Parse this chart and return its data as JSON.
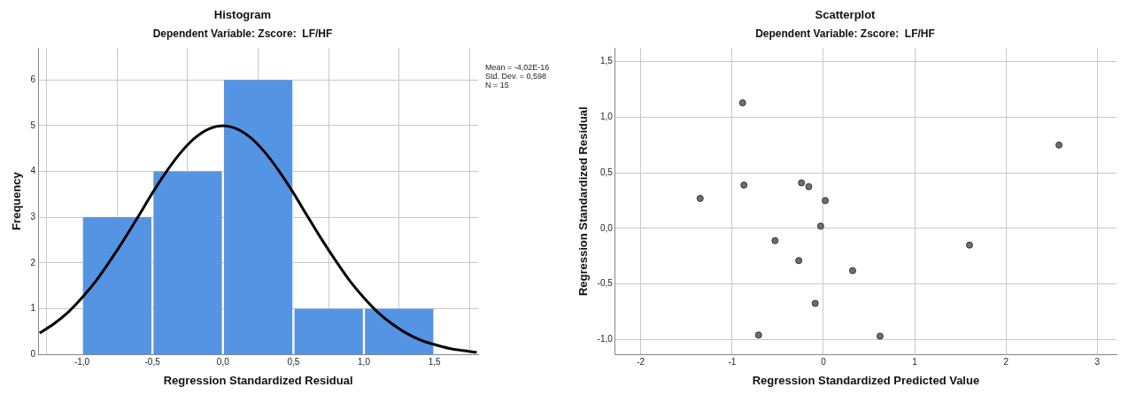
{
  "chart_data": [
    {
      "type": "histogram",
      "title": "Histogram",
      "subtitle": "Dependent Variable: Zscore:  LF/HF",
      "xlabel": "Regression Standardized Residual",
      "ylabel": "Frequency",
      "bins": [
        -1,
        -0.5,
        0,
        0.5,
        1,
        1.5
      ],
      "values": [
        3,
        4,
        6,
        1,
        1
      ],
      "color": "#5594e3",
      "series": [
        {
          "type": "line",
          "color": "#000000",
          "x": [
            -1.3,
            -1.2,
            -1.1,
            -1.0,
            -0.9,
            -0.8,
            -0.7,
            -0.6,
            -0.5,
            -0.4,
            -0.3,
            -0.2,
            -0.1,
            0,
            0.1,
            0.2,
            0.3,
            0.4,
            0.5,
            0.6,
            0.7,
            0.8,
            0.9,
            1.0,
            1.1,
            1.2,
            1.3,
            1.4,
            1.5,
            1.6,
            1.7,
            1.8
          ],
          "values": [
            0.47,
            0.67,
            0.92,
            1.24,
            1.61,
            2.05,
            2.52,
            3.02,
            3.53,
            4.0,
            4.41,
            4.73,
            4.93,
            5.0,
            4.93,
            4.73,
            4.41,
            4.0,
            3.53,
            3.02,
            2.52,
            2.05,
            1.61,
            1.24,
            0.92,
            0.67,
            0.47,
            0.32,
            0.22,
            0.14,
            0.09,
            0.05
          ]
        }
      ],
      "xlim": [
        -1.31,
        1.81
      ],
      "xticks": [
        {
          "value": -1,
          "label": "-1,0"
        },
        {
          "value": -0.5,
          "label": "-0,5"
        },
        {
          "value": 0,
          "label": "0,0"
        },
        {
          "value": 0.5,
          "label": "0,5"
        },
        {
          "value": 1,
          "label": "1,0"
        },
        {
          "value": 1.5,
          "label": "1,5"
        }
      ],
      "ylim": [
        0,
        6.7
      ],
      "yticks": [
        0,
        1,
        2,
        3,
        4,
        5,
        6
      ],
      "annotations": [
        "Mean = -4,02E-16",
        "Std. Dev. = 0,598",
        "N = 15"
      ],
      "grid": true,
      "legend": false
    },
    {
      "type": "scatter",
      "title": "Scatterplot",
      "subtitle": "Dependent Variable: Zscore:  LF/HF",
      "xlabel": "Regression Standardized Predicted Value",
      "ylabel": "Regression Standardized Residual",
      "x": [
        -0.885,
        2.58,
        -1.35,
        -0.87,
        -0.24,
        -0.16,
        0.02,
        -0.03,
        -0.53,
        1.6,
        -0.27,
        0.32,
        -0.09,
        -0.71,
        0.62
      ],
      "values": [
        1.13,
        0.75,
        0.27,
        0.39,
        0.41,
        0.375,
        0.25,
        0.02,
        -0.11,
        -0.15,
        -0.29,
        -0.38,
        -0.675,
        -0.96,
        -0.97
      ],
      "color": "#6e6e6e",
      "marker": "circle",
      "xlim": [
        -2.28,
        3.21
      ],
      "xticks": [
        -2,
        -1,
        0,
        1,
        2,
        3
      ],
      "ylim": [
        -1.136,
        1.625
      ],
      "yticks": [
        {
          "value": -1,
          "label": "-1,0"
        },
        {
          "value": -0.5,
          "label": "-0,5"
        },
        {
          "value": 0,
          "label": "0,0"
        },
        {
          "value": 0.5,
          "label": "0,5"
        },
        {
          "value": 1,
          "label": "1,0"
        },
        {
          "value": 1.5,
          "label": "1,5"
        }
      ],
      "grid": true,
      "legend": false
    }
  ]
}
